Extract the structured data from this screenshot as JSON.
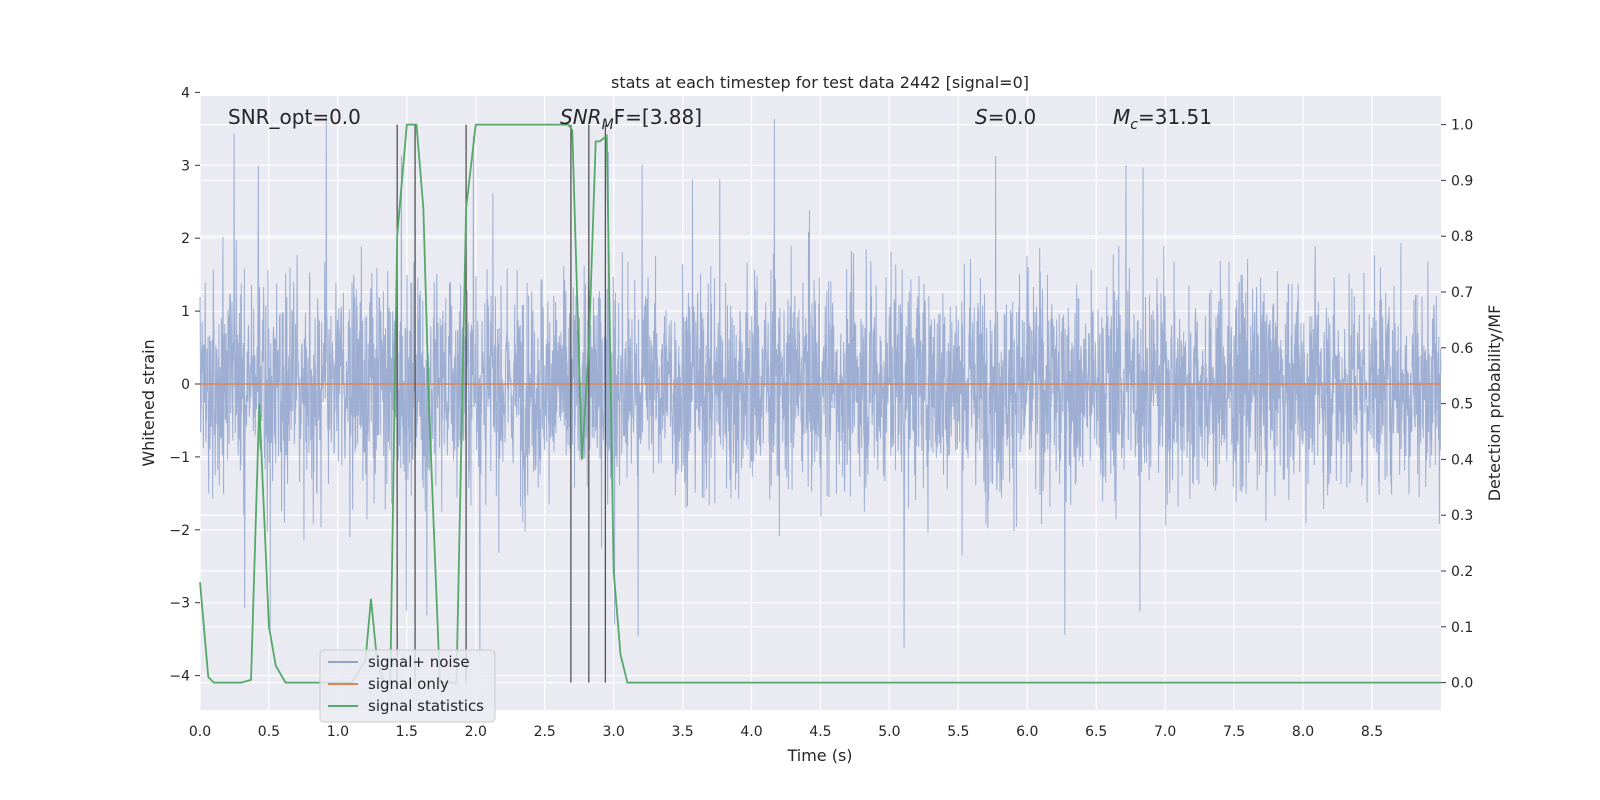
{
  "chart_data": {
    "type": "line",
    "title": "stats at each timestep for test data 2442 [signal=0]",
    "xlabel": "Time (s)",
    "ylabel": "Whitened strain",
    "y2label": "Detection probability/MF",
    "xlim": [
      0.0,
      9.0
    ],
    "ylim": [
      -4.35,
      4.05
    ],
    "y2lim": [
      -0.048,
      1.048
    ],
    "grid": true,
    "xticks": [
      0.0,
      0.5,
      1.0,
      1.5,
      2.0,
      2.5,
      3.0,
      3.5,
      4.0,
      4.5,
      5.0,
      5.5,
      6.0,
      6.5,
      7.0,
      7.5,
      8.0,
      8.5
    ],
    "xtick_labels": [
      "0.0",
      "0.5",
      "1.0",
      "1.5",
      "2.0",
      "2.5",
      "3.0",
      "3.5",
      "4.0",
      "4.5",
      "5.0",
      "5.5",
      "6.0",
      "6.5",
      "7.0",
      "7.5",
      "8.0",
      "8.5"
    ],
    "yticks": [
      4,
      3,
      2,
      1,
      0,
      -1,
      -2,
      -3,
      -4
    ],
    "ytick_labels": [
      "4",
      "3",
      "2",
      "1",
      "0",
      "−1",
      "−2",
      "−3",
      "−4"
    ],
    "y2ticks": [
      1.0,
      0.9,
      0.8,
      0.7,
      0.6,
      0.5,
      0.4,
      0.3,
      0.2,
      0.1,
      0.0
    ],
    "y2tick_labels": [
      "1.0",
      "0.9",
      "0.8",
      "0.7",
      "0.6",
      "0.5",
      "0.4",
      "0.3",
      "0.2",
      "0.1",
      "0.0"
    ],
    "annotations": {
      "snr_opt": "SNR_opt=0.0",
      "snr_mf_main": "SNR",
      "snr_mf_sub": "M",
      "snr_mf_rest": "F=[3.88]",
      "s_main": "S",
      "s_rest": "=0.0",
      "mc_main": "M",
      "mc_sub": "c",
      "mc_rest": "=31.51"
    },
    "legend": {
      "placement": "lower-left",
      "entries": [
        "signal+ noise",
        "signal only",
        "signal statistics"
      ]
    },
    "series": [
      {
        "name": "signal+ noise",
        "color": "#8fa3cd",
        "axis": "left",
        "description": "dense Gaussian-like noise, roughly -2.5 to 2.5 with occasional spikes to +/-3.5"
      },
      {
        "name": "signal only",
        "color": "#dd8452",
        "axis": "left",
        "x": [
          0.0,
          9.0
        ],
        "y": [
          0.0,
          0.0
        ]
      },
      {
        "name": "signal statistics",
        "color": "#55a868",
        "axis": "right",
        "x": [
          0.0,
          0.06,
          0.1,
          0.2,
          0.3,
          0.37,
          0.43,
          0.5,
          0.55,
          0.62,
          0.8,
          1.0,
          1.1,
          1.2,
          1.24,
          1.28,
          1.33,
          1.38,
          1.43,
          1.5,
          1.57,
          1.62,
          1.66,
          1.74,
          1.8,
          1.86,
          1.93,
          2.0,
          2.5,
          2.67,
          2.7,
          2.77,
          2.82,
          2.87,
          2.9,
          2.95,
          3.0,
          3.05,
          3.1,
          9.0
        ],
        "y": [
          0.18,
          0.01,
          0.0,
          0.0,
          0.0,
          0.005,
          0.5,
          0.1,
          0.03,
          0.0,
          0.0,
          0.0,
          0.0,
          0.04,
          0.15,
          0.05,
          0.0,
          0.0,
          0.8,
          1.0,
          1.0,
          0.85,
          0.5,
          0.0,
          0.0,
          0.0,
          0.85,
          1.0,
          1.0,
          1.0,
          0.99,
          0.4,
          0.6,
          0.97,
          0.97,
          0.98,
          0.2,
          0.05,
          0.0,
          0.0
        ]
      }
    ],
    "vertical_markers": [
      1.43,
      1.56,
      1.93,
      2.69,
      2.82,
      2.94
    ]
  }
}
